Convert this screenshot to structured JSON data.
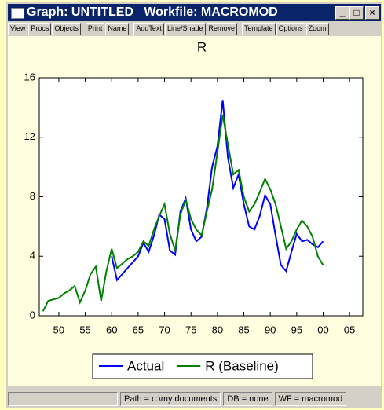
{
  "window": {
    "title": "Graph: UNTITLED   Workfile: MACROMOD",
    "toolbar": [
      "View",
      "Procs",
      "Objects",
      "Print",
      "Name",
      "AddText",
      "Line/Shade",
      "Remove",
      "Template",
      "Options",
      "Zoom"
    ],
    "status": [
      "Path = c:\\my documents",
      "DB = none",
      "WF = macromod"
    ]
  },
  "chart_data": {
    "type": "line",
    "title": "R",
    "x": [
      1947,
      1948,
      1949,
      1950,
      1951,
      1952,
      1953,
      1954,
      1955,
      1956,
      1957,
      1958,
      1959,
      1960,
      1961,
      1962,
      1963,
      1964,
      1965,
      1966,
      1967,
      1968,
      1969,
      1970,
      1971,
      1972,
      1973,
      1974,
      1975,
      1976,
      1977,
      1978,
      1979,
      1980,
      1981,
      1982,
      1983,
      1984,
      1985,
      1986,
      1987,
      1988,
      1989,
      1990,
      1991,
      1992,
      1993,
      1994,
      1995,
      1996,
      1997,
      1998,
      1999,
      2000
    ],
    "series": [
      {
        "name": "Actual",
        "color": "#0000ff",
        "values": [
          null,
          null,
          null,
          null,
          null,
          null,
          null,
          null,
          null,
          null,
          null,
          null,
          null,
          4.0,
          2.4,
          2.8,
          3.2,
          3.6,
          4.0,
          4.9,
          4.3,
          5.4,
          6.8,
          6.5,
          4.4,
          4.1,
          7.0,
          7.9,
          5.8,
          5.0,
          5.3,
          7.2,
          10.0,
          11.4,
          14.5,
          10.6,
          8.6,
          9.5,
          7.5,
          6.0,
          5.8,
          6.7,
          8.1,
          7.5,
          5.4,
          3.4,
          3.0,
          4.3,
          5.5,
          5.0,
          5.1,
          4.8,
          4.6,
          5.0
        ]
      },
      {
        "name": "R (Baseline)",
        "color": "#008000",
        "values": [
          0.3,
          1.0,
          1.1,
          1.2,
          1.5,
          1.7,
          2.0,
          0.9,
          1.7,
          2.8,
          3.3,
          1.0,
          3.0,
          4.5,
          3.2,
          3.5,
          3.8,
          4.0,
          4.3,
          5.0,
          4.7,
          5.8,
          6.7,
          7.5,
          5.5,
          4.4,
          6.8,
          7.8,
          6.5,
          5.8,
          5.4,
          7.0,
          8.5,
          11.0,
          13.5,
          11.5,
          9.5,
          9.8,
          8.0,
          7.0,
          7.5,
          8.3,
          9.2,
          8.5,
          7.5,
          6.0,
          4.5,
          5.0,
          5.8,
          6.4,
          6.0,
          5.3,
          4.0,
          3.4
        ]
      }
    ],
    "xlim": [
      1946.3,
      2007.5
    ],
    "xticks": [
      {
        "value": 1950,
        "label": "50"
      },
      {
        "value": 1955,
        "label": "55"
      },
      {
        "value": 1960,
        "label": "60"
      },
      {
        "value": 1965,
        "label": "65"
      },
      {
        "value": 1970,
        "label": "70"
      },
      {
        "value": 1975,
        "label": "75"
      },
      {
        "value": 1980,
        "label": "80"
      },
      {
        "value": 1985,
        "label": "85"
      },
      {
        "value": 1990,
        "label": "90"
      },
      {
        "value": 1995,
        "label": "95"
      },
      {
        "value": 2000,
        "label": "00"
      },
      {
        "value": 2005,
        "label": "05"
      }
    ],
    "ylim": [
      0,
      16
    ],
    "yticks": [
      0,
      4,
      8,
      12,
      16
    ],
    "grid": false
  }
}
